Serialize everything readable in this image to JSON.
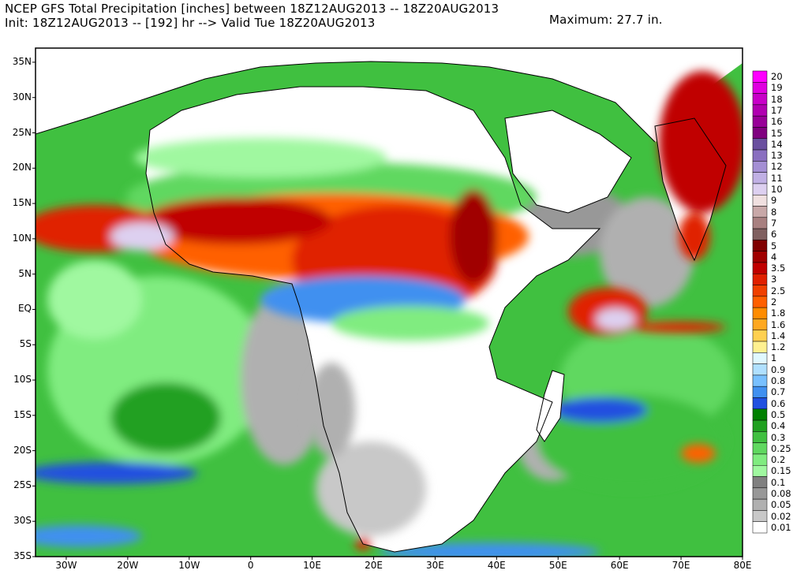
{
  "header": {
    "title": "NCEP GFS Total Precipitation [inches] between 18Z12AUG2013 -- 18Z20AUG2013",
    "init_line": "Init: 18Z12AUG2013 -- [192] hr --> Valid Tue 18Z20AUG2013",
    "maximum": "Maximum:  27.7 in."
  },
  "map": {
    "lon_range": [
      -35,
      80
    ],
    "lat_range": [
      -35,
      37
    ],
    "lat_labels": [
      "35N",
      "30N",
      "25N",
      "20N",
      "15N",
      "10N",
      "5N",
      "EQ",
      "5S",
      "10S",
      "15S",
      "20S",
      "25S",
      "30S",
      "35S"
    ],
    "lat_values": [
      35,
      30,
      25,
      20,
      15,
      10,
      5,
      0,
      -5,
      -10,
      -15,
      -20,
      -25,
      -30,
      -35
    ],
    "lon_labels": [
      "30W",
      "20W",
      "10W",
      "0",
      "10E",
      "20E",
      "30E",
      "40E",
      "50E",
      "60E",
      "70E",
      "80E"
    ],
    "lon_values": [
      -30,
      -20,
      -10,
      0,
      10,
      20,
      30,
      40,
      50,
      60,
      70,
      80
    ]
  },
  "legend": {
    "levels": [
      "20",
      "19",
      "18",
      "17",
      "16",
      "15",
      "14",
      "13",
      "12",
      "11",
      "10",
      "9",
      "8",
      "7",
      "6",
      "5",
      "4",
      "3.5",
      "3",
      "2.5",
      "2",
      "1.8",
      "1.6",
      "1.4",
      "1.2",
      "1",
      "0.9",
      "0.8",
      "0.7",
      "0.6",
      "0.5",
      "0.4",
      "0.3",
      "0.25",
      "0.2",
      "0.15",
      "0.1",
      "0.08",
      "0.05",
      "0.02",
      "0.01"
    ],
    "colors": [
      "#ff00ff",
      "#e000e0",
      "#c800c8",
      "#b000b0",
      "#980098",
      "#800080",
      "#6a4f9f",
      "#8a6fc0",
      "#a48fd4",
      "#c0b0e4",
      "#ddd0f0",
      "#f0e0e0",
      "#c8a8a8",
      "#a88080",
      "#806060",
      "#800000",
      "#a00000",
      "#c00000",
      "#e02000",
      "#f04000",
      "#ff6000",
      "#ff8c00",
      "#ffa820",
      "#ffd050",
      "#fff090",
      "#e0f8ff",
      "#b0e0ff",
      "#78c0ff",
      "#4090f0",
      "#2050e0",
      "#008000",
      "#20a020",
      "#40c040",
      "#60d860",
      "#80ec80",
      "#a0f8a0",
      "#808080",
      "#989898",
      "#b0b0b0",
      "#c8c8c8",
      "#ffffff"
    ]
  }
}
